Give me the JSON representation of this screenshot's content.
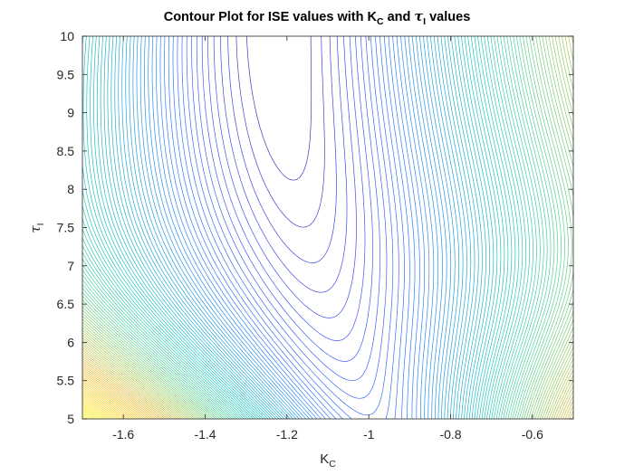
{
  "chart_data": {
    "type": "contour",
    "title_parts": [
      "Contour Plot for ISE values with K",
      "C",
      " and ",
      "τ",
      "I",
      " values"
    ],
    "xlabel_main": "K",
    "xlabel_sub": "C",
    "ylabel_main": "τ",
    "ylabel_sub": "I",
    "xlim": [
      -1.7,
      -0.5
    ],
    "ylim": [
      5,
      10
    ],
    "xticks": [
      -1.6,
      -1.4,
      -1.2,
      -1.0,
      -0.8,
      -0.6
    ],
    "xtick_labels": [
      "-1.6",
      "-1.4",
      "-1.2",
      "-1",
      "-0.8",
      "-0.6"
    ],
    "yticks": [
      5,
      5.5,
      6,
      6.5,
      7,
      7.5,
      8,
      8.5,
      9,
      9.5,
      10
    ],
    "ytick_labels": [
      "5",
      "5.5",
      "6",
      "6.5",
      "7",
      "7.5",
      "8",
      "8.5",
      "9",
      "9.5",
      "10"
    ],
    "colormap": "parula",
    "colormap_stops": [
      "#3e26a8",
      "#4354f0",
      "#2f7ffa",
      "#1fa5d4",
      "#1ac7be",
      "#4ed09a",
      "#9ccc5e",
      "#e5b834",
      "#fbd62a",
      "#f9fb0e"
    ],
    "minimum_approx": {
      "x": -1.2,
      "y": 9.0
    },
    "grid": false,
    "box": true
  }
}
